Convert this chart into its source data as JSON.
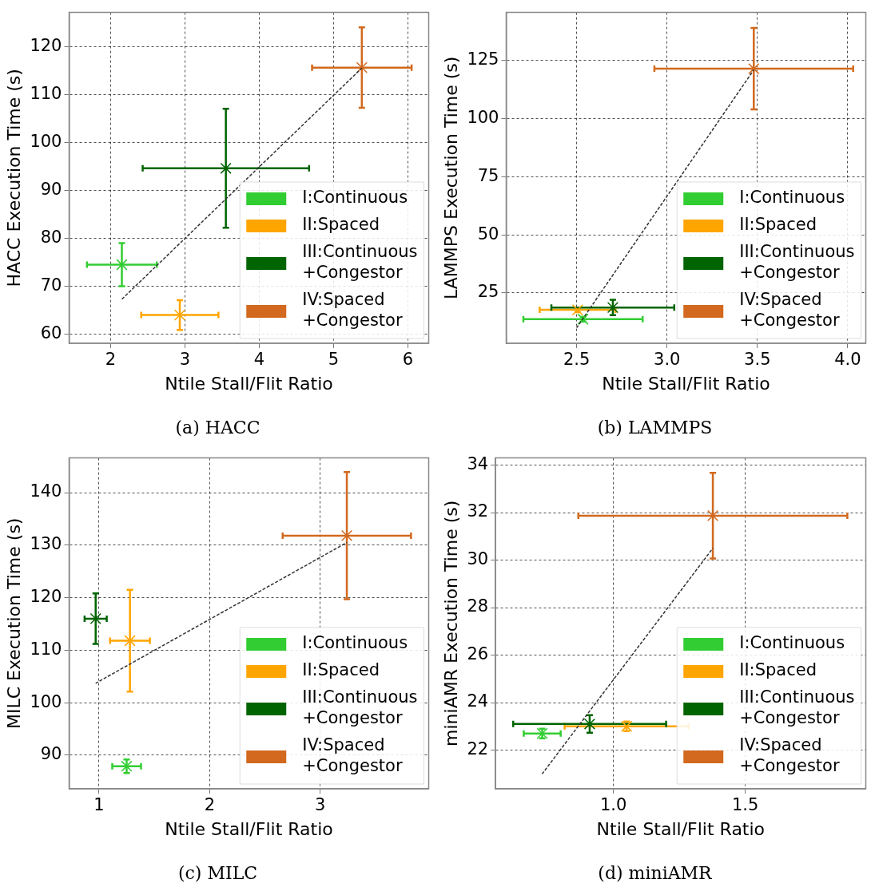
{
  "chart_data": [
    {
      "type": "scatter",
      "title": "(a) HACC",
      "xlabel": "Ntile Stall/Flit Ratio",
      "ylabel": "HACC Execution Time (s)",
      "xlim": [
        1.44,
        6.28
      ],
      "ylim": [
        58.1,
        127.1
      ],
      "xticks": [
        2,
        3,
        4,
        5,
        6
      ],
      "yticks": [
        60,
        70,
        80,
        90,
        100,
        110,
        120
      ],
      "grid": true,
      "legend": "bottom right",
      "marker": "cross",
      "series": [
        {
          "name": "I:Continuous",
          "color": "#32cd32",
          "x": [
            2.15
          ],
          "values": [
            74.5
          ],
          "errors": [
            4.5
          ],
          "xerrors": [
            0.47
          ]
        },
        {
          "name": "II:Spaced",
          "color": "#ffa500",
          "x": [
            2.93
          ],
          "values": [
            64
          ],
          "errors": [
            3.1
          ],
          "xerrors": [
            0.52
          ]
        },
        {
          "name": "III:Continuous +Congestor",
          "color": "#006400",
          "x": [
            3.55
          ],
          "values": [
            94.6
          ],
          "errors": [
            12.4
          ],
          "xerrors": [
            1.12
          ]
        },
        {
          "name": "IV:Spaced +Congestor",
          "color": "#d2691e",
          "x": [
            5.38
          ],
          "values": [
            115.6
          ],
          "errors": [
            8.4
          ],
          "xerrors": [
            0.67
          ]
        },
        {
          "type": "line",
          "color": "#333333",
          "x": [
            2.15,
            5.38
          ],
          "values": [
            67.3,
            115.5
          ],
          "line_style": "dashed",
          "marker": "none"
        }
      ]
    },
    {
      "type": "scatter",
      "title": "(b) LAMMPS",
      "xlabel": "Ntile Stall/Flit Ratio",
      "ylabel": "LAMMPS Execution Time (s)",
      "xlim": [
        2.11,
        4.1
      ],
      "ylim": [
        3.3,
        145.7
      ],
      "xticks": [
        2.5,
        {
          "value": 3,
          "label": "3.0"
        },
        3.5,
        {
          "value": 4,
          "label": "4.0"
        }
      ],
      "yticks": [
        25,
        50,
        75,
        100,
        125
      ],
      "grid": true,
      "legend": "bottom right",
      "marker": "cross",
      "series": [
        {
          "name": "I:Continuous",
          "color": "#32cd32",
          "x": [
            2.535
          ],
          "values": [
            13.7
          ],
          "errors": [
            1
          ],
          "xerrors": [
            0.33
          ]
        },
        {
          "name": "II:Spaced",
          "color": "#ffa500",
          "x": [
            2.505
          ],
          "values": [
            17.7
          ],
          "errors": [
            1
          ],
          "xerrors": [
            0.21
          ]
        },
        {
          "name": "III:Continuous +Congestor",
          "color": "#006400",
          "x": [
            2.7
          ],
          "values": [
            18.7
          ],
          "errors": [
            3.3
          ],
          "xerrors": [
            0.34
          ]
        },
        {
          "name": "IV:Spaced +Congestor",
          "color": "#d2691e",
          "x": [
            3.48
          ],
          "values": [
            121.5
          ],
          "errors": [
            17.5
          ],
          "xerrors": [
            0.55
          ]
        },
        {
          "type": "line",
          "color": "#333333",
          "x": [
            2.5,
            3.48
          ],
          "values": [
            10,
            121
          ],
          "line_style": "dashed",
          "marker": "none"
        }
      ]
    },
    {
      "type": "scatter",
      "title": "(c) MILC",
      "xlabel": "Ntile Stall/Flit Ratio",
      "ylabel": "MILC Execution Time (s)",
      "xlim": [
        0.73,
        3.98
      ],
      "ylim": [
        83.6,
        146.6
      ],
      "xticks": [
        1,
        2,
        3
      ],
      "yticks": [
        90,
        100,
        110,
        120,
        130,
        140
      ],
      "grid": true,
      "legend": "bottom right",
      "marker": "cross",
      "series": [
        {
          "name": "I:Continuous",
          "color": "#32cd32",
          "x": [
            1.25
          ],
          "values": [
            87.9
          ],
          "errors": [
            1.3
          ],
          "xerrors": [
            0.13
          ]
        },
        {
          "name": "II:Spaced",
          "color": "#ffa500",
          "x": [
            1.28
          ],
          "values": [
            111.8
          ],
          "errors": [
            9.7
          ],
          "xerrors": [
            0.18
          ]
        },
        {
          "name": "III:Continuous +Congestor",
          "color": "#006400",
          "x": [
            0.97
          ],
          "values": [
            116
          ],
          "errors": [
            4.8
          ],
          "xerrors": [
            0.1
          ]
        },
        {
          "name": "IV:Spaced +Congestor",
          "color": "#d2691e",
          "x": [
            3.24
          ],
          "values": [
            131.8
          ],
          "errors": [
            12.1
          ],
          "xerrors": [
            0.58
          ]
        },
        {
          "type": "line",
          "color": "#333333",
          "x": [
            0.97,
            3.24
          ],
          "values": [
            103.7,
            130.5
          ],
          "line_style": "dashed",
          "marker": "none"
        }
      ]
    },
    {
      "type": "scatter",
      "title": "(d) miniAMR",
      "xlabel": "Ntile Stall/Flit Ratio",
      "ylabel": "miniAMR Execution Time (s)",
      "xlim": [
        0.553,
        1.957
      ],
      "ylim": [
        20.37,
        34.3
      ],
      "xticks": [
        {
          "value": 1,
          "label": "1.0"
        },
        1.5
      ],
      "yticks": [
        22,
        24,
        26,
        28,
        30,
        32,
        34
      ],
      "grid": true,
      "legend": "bottom right",
      "marker": "cross",
      "series": [
        {
          "name": "I:Continuous",
          "color": "#32cd32",
          "x": [
            0.73
          ],
          "values": [
            22.7
          ],
          "errors": [
            0.2
          ],
          "xerrors": [
            0.07
          ]
        },
        {
          "name": "II:Spaced",
          "color": "#ffa500",
          "x": [
            1.05
          ],
          "values": [
            23
          ],
          "errors": [
            0.2
          ],
          "xerrors": [
            0.235
          ]
        },
        {
          "name": "III:Continuous +Congestor",
          "color": "#006400",
          "x": [
            0.91
          ],
          "values": [
            23.1
          ],
          "errors": [
            0.37
          ],
          "xerrors": [
            0.29
          ]
        },
        {
          "name": "IV:Spaced +Congestor",
          "color": "#d2691e",
          "x": [
            1.377
          ],
          "values": [
            31.87
          ],
          "errors": [
            1.8
          ],
          "xerrors": [
            0.51
          ]
        },
        {
          "type": "line",
          "color": "#333333",
          "x": [
            0.73,
            1.377
          ],
          "values": [
            21,
            30.5
          ],
          "line_style": "dashed",
          "marker": "none"
        }
      ]
    }
  ]
}
